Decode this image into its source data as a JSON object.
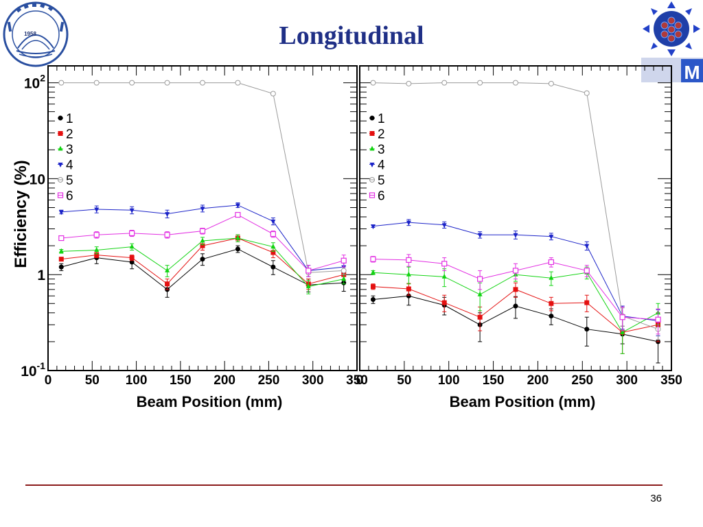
{
  "slide": {
    "title": "Longitudinal",
    "page_number": "36",
    "logo_left": {
      "icon": "university-seal-icon",
      "year_text": "1958",
      "color": "#2a4fa0"
    },
    "logo_right": {
      "icon": "detector-logo-icon",
      "letter": "M",
      "color": "#2b57c8"
    }
  },
  "chart_data": [
    {
      "type": "line",
      "title": "",
      "xlabel": "Beam Position (mm)",
      "ylabel": "Efficiency (%)",
      "xlim": [
        0,
        350
      ],
      "ylim": [
        0.1,
        150
      ],
      "yscale": "log",
      "xticks": [
        "0",
        "50",
        "100",
        "150",
        "200",
        "250",
        "300",
        "350"
      ],
      "yticks": [
        {
          "base": "10",
          "exp": "-1",
          "value": 0.1
        },
        {
          "base": "1",
          "exp": "",
          "value": 1
        },
        {
          "base": "10",
          "exp": "",
          "value": 10
        },
        {
          "base": "10",
          "exp": "2",
          "value": 100
        }
      ],
      "legend_position": "upper-left",
      "x": [
        15,
        55,
        95,
        135,
        175,
        215,
        255,
        295,
        335
      ],
      "series": [
        {
          "name": "1",
          "color": "#000000",
          "marker": "circle-filled",
          "values": [
            1.2,
            1.5,
            1.35,
            0.7,
            1.45,
            1.85,
            1.2,
            0.78,
            0.82
          ],
          "errors": [
            0.1,
            0.2,
            0.2,
            0.12,
            0.2,
            0.15,
            0.2,
            0.12,
            0.15
          ]
        },
        {
          "name": "2",
          "color": "#e41010",
          "marker": "square-filled",
          "values": [
            1.45,
            1.6,
            1.5,
            0.8,
            2.0,
            2.4,
            1.7,
            0.8,
            1.0
          ],
          "errors": [
            0.05,
            0.1,
            0.1,
            0.1,
            0.2,
            0.2,
            0.2,
            0.1,
            0.12
          ]
        },
        {
          "name": "3",
          "color": "#12d412",
          "marker": "triangle-up-filled",
          "values": [
            1.75,
            1.8,
            1.95,
            1.1,
            2.25,
            2.4,
            1.95,
            0.75,
            0.9
          ],
          "errors": [
            0.08,
            0.15,
            0.15,
            0.15,
            0.2,
            0.2,
            0.2,
            0.12,
            0.1
          ]
        },
        {
          "name": "4",
          "color": "#1a22c8",
          "marker": "triangle-down-filled",
          "values": [
            4.5,
            4.8,
            4.7,
            4.3,
            4.9,
            5.3,
            3.6,
            1.1,
            1.2
          ],
          "errors": [
            0.2,
            0.4,
            0.4,
            0.4,
            0.4,
            0.3,
            0.3,
            0.15,
            0.12
          ]
        },
        {
          "name": "5",
          "color": "#9a9a9a",
          "marker": "circle-open",
          "values": [
            100,
            100,
            100,
            100,
            100,
            100,
            77,
            1.05,
            1.1
          ],
          "errors": [
            0,
            0,
            0,
            0,
            0,
            0,
            3,
            0.1,
            0.1
          ]
        },
        {
          "name": "6",
          "color": "#e22ee2",
          "marker": "square-open",
          "values": [
            2.4,
            2.6,
            2.7,
            2.6,
            2.85,
            4.2,
            2.65,
            1.1,
            1.4
          ],
          "errors": [
            0.1,
            0.2,
            0.2,
            0.2,
            0.2,
            0.2,
            0.2,
            0.15,
            0.2
          ]
        }
      ]
    },
    {
      "type": "line",
      "title": "",
      "xlabel": "Beam Position (mm)",
      "ylabel": "",
      "xlim": [
        0,
        350
      ],
      "ylim": [
        0.1,
        150
      ],
      "yscale": "log",
      "xticks": [
        "0",
        "50",
        "100",
        "150",
        "200",
        "250",
        "300",
        "350"
      ],
      "legend_position": "upper-left",
      "x": [
        15,
        55,
        95,
        135,
        175,
        215,
        255,
        295,
        335
      ],
      "series": [
        {
          "name": "1",
          "color": "#000000",
          "marker": "circle-filled",
          "values": [
            0.55,
            0.6,
            0.48,
            0.3,
            0.47,
            0.37,
            0.27,
            0.24,
            0.2
          ],
          "errors": [
            0.05,
            0.12,
            0.1,
            0.1,
            0.12,
            0.07,
            0.09,
            0.05,
            0.08
          ]
        },
        {
          "name": "2",
          "color": "#e41010",
          "marker": "square-filled",
          "values": [
            0.75,
            0.71,
            0.51,
            0.36,
            0.7,
            0.5,
            0.51,
            0.25,
            0.3
          ],
          "errors": [
            0.05,
            0.1,
            0.1,
            0.1,
            0.12,
            0.08,
            0.1,
            0.1,
            0.1
          ]
        },
        {
          "name": "3",
          "color": "#12d412",
          "marker": "triangle-up-filled",
          "values": [
            1.05,
            1.0,
            0.95,
            0.62,
            1.0,
            0.92,
            1.05,
            0.25,
            0.4
          ],
          "errors": [
            0.05,
            0.2,
            0.2,
            0.2,
            0.15,
            0.15,
            0.15,
            0.1,
            0.1
          ]
        },
        {
          "name": "4",
          "color": "#1a22c8",
          "marker": "triangle-down-filled",
          "values": [
            3.2,
            3.5,
            3.3,
            2.6,
            2.6,
            2.5,
            2.0,
            0.37,
            0.33
          ],
          "errors": [
            0.1,
            0.25,
            0.25,
            0.2,
            0.25,
            0.2,
            0.2,
            0.1,
            0.1
          ]
        },
        {
          "name": "5",
          "color": "#9a9a9a",
          "marker": "circle-open",
          "values": [
            100,
            98,
            100,
            100,
            100,
            98,
            78,
            0.37,
            0.27
          ],
          "errors": [
            0,
            0,
            0,
            0,
            0,
            0,
            3,
            0.08,
            0.06
          ]
        },
        {
          "name": "6",
          "color": "#e22ee2",
          "marker": "square-open",
          "values": [
            1.45,
            1.42,
            1.3,
            0.9,
            1.1,
            1.35,
            1.1,
            0.36,
            0.34
          ],
          "errors": [
            0.1,
            0.2,
            0.2,
            0.2,
            0.2,
            0.15,
            0.15,
            0.1,
            0.1
          ]
        }
      ]
    }
  ]
}
